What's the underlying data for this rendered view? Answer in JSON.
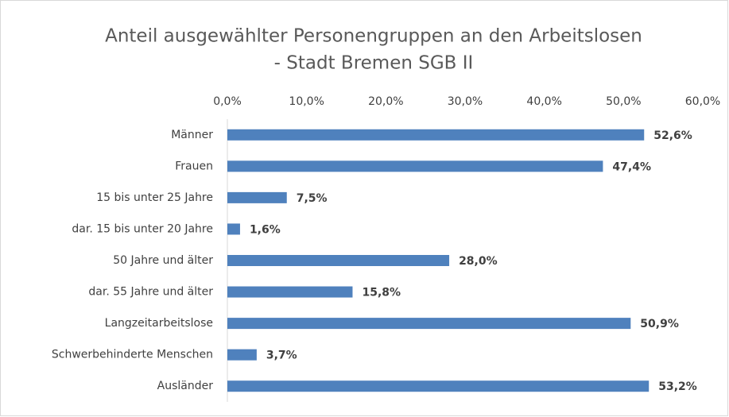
{
  "chart_data": {
    "type": "bar",
    "orientation": "horizontal",
    "title": [
      "Anteil ausgewählter Personengruppen an den Arbeitslosen",
      "- Stadt Bremen SGB II"
    ],
    "categories": [
      "Männer",
      "Frauen",
      "15 bis unter 25 Jahre",
      "dar. 15 bis unter 20 Jahre",
      "50 Jahre und älter",
      "dar. 55 Jahre und älter",
      "Langzeitarbeitslose",
      "Schwerbehinderte Menschen",
      "Ausländer"
    ],
    "values": [
      52.6,
      47.4,
      7.5,
      1.6,
      28.0,
      15.8,
      50.9,
      3.7,
      53.2
    ],
    "value_labels": [
      "52,6%",
      "47,4%",
      "7,5%",
      "1,6%",
      "28,0%",
      "15,8%",
      "50,9%",
      "3,7%",
      "53,2%"
    ],
    "color": "#4f81bd",
    "xlim": [
      0,
      60
    ],
    "xticks": [
      {
        "value": 0,
        "label": "0,0%"
      },
      {
        "value": 10,
        "label": "10,0%"
      },
      {
        "value": 20,
        "label": "20,0%"
      },
      {
        "value": 30,
        "label": "30,0%"
      },
      {
        "value": 40,
        "label": "40,0%"
      },
      {
        "value": 50,
        "label": "50,0%"
      },
      {
        "value": 60,
        "label": "60,0%"
      }
    ],
    "grid": false
  }
}
